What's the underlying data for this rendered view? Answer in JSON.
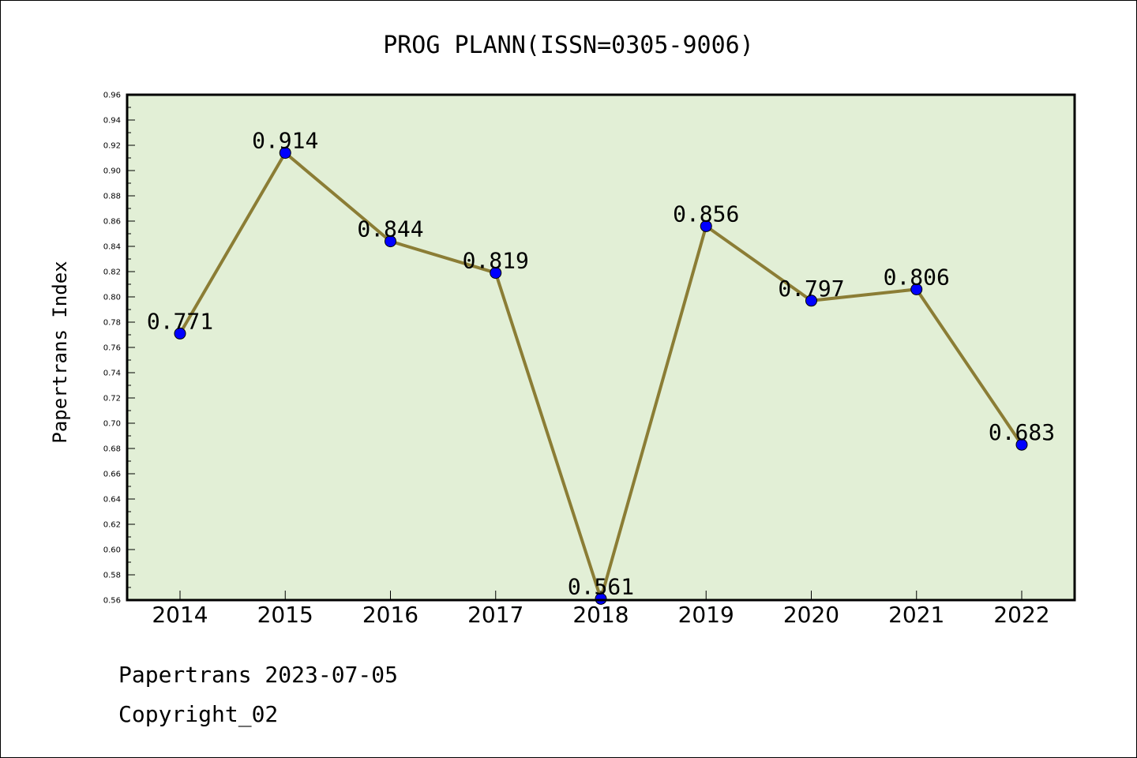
{
  "chart_data": {
    "type": "line",
    "title": "PROG PLANN(ISSN=0305-9006)",
    "ylabel": "Papertrans Index",
    "xlabel": "",
    "categories": [
      "2014",
      "2015",
      "2016",
      "2017",
      "2018",
      "2019",
      "2020",
      "2021",
      "2022"
    ],
    "values": [
      0.771,
      0.914,
      0.844,
      0.819,
      0.561,
      0.856,
      0.797,
      0.806,
      0.683
    ],
    "data_labels": [
      "0.771",
      "0.914",
      "0.844",
      "0.819",
      "0.561",
      "0.856",
      "0.797",
      "0.806",
      "0.683"
    ],
    "ylim": [
      0.56,
      0.96
    ],
    "yticks": [
      "0.56",
      "0.58",
      "0.60",
      "0.62",
      "0.64",
      "0.66",
      "0.68",
      "0.70",
      "0.72",
      "0.74",
      "0.76",
      "0.78",
      "0.80",
      "0.82",
      "0.84",
      "0.86",
      "0.88",
      "0.90",
      "0.92",
      "0.94",
      "0.96"
    ],
    "grid": false,
    "colors": {
      "plot_background": "#e2efd6",
      "line": "#8b7d35",
      "marker": "#0000ff"
    }
  },
  "footer": {
    "line1": "Papertrans 2023-07-05",
    "line2": "Copyright_02"
  }
}
